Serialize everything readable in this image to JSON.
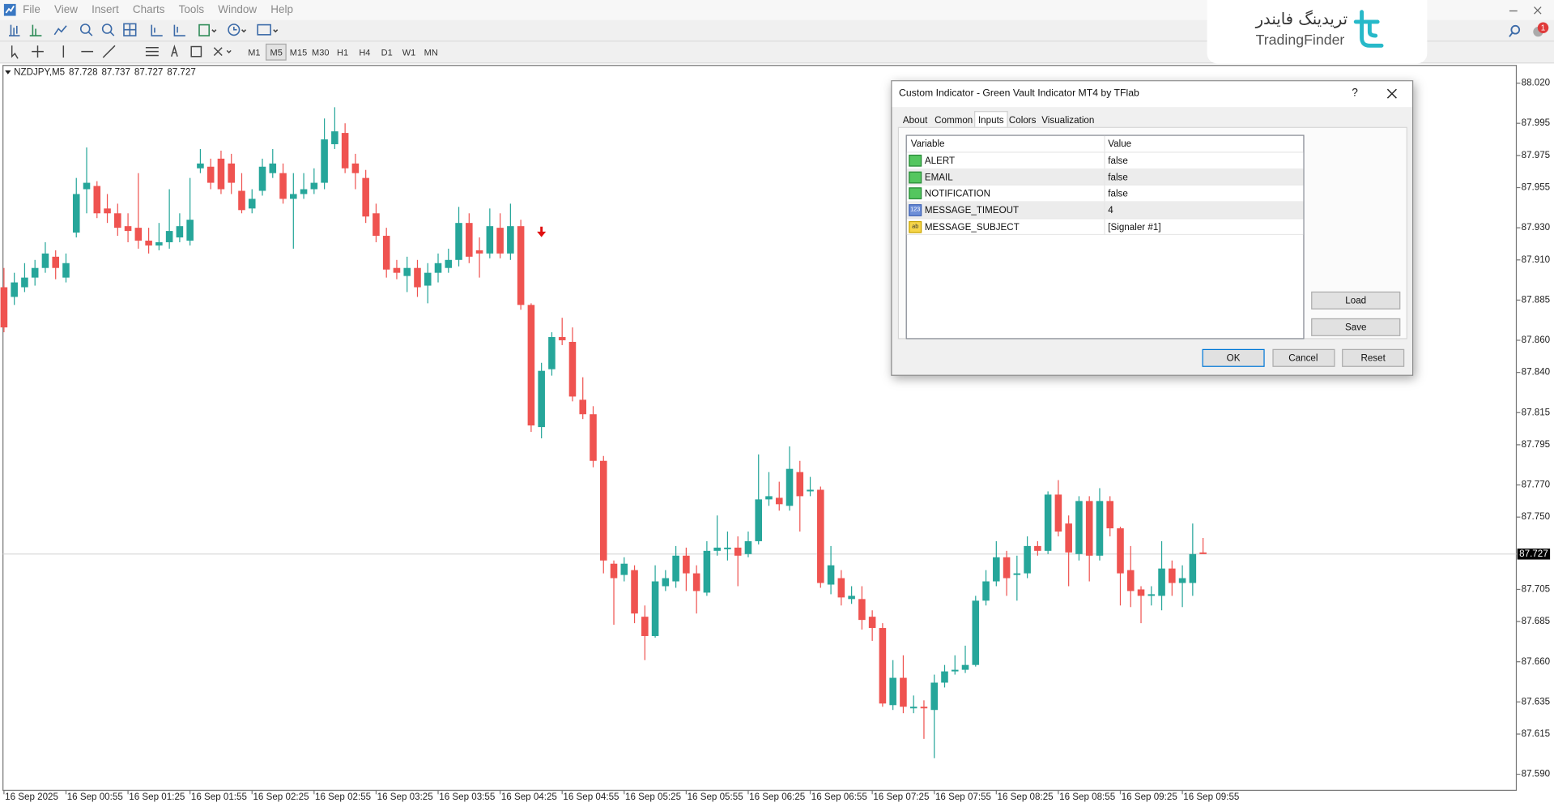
{
  "menu": [
    "File",
    "View",
    "Insert",
    "Charts",
    "Tools",
    "Window",
    "Help"
  ],
  "timeframes": [
    "M1",
    "M5",
    "M15",
    "M30",
    "H1",
    "H4",
    "D1",
    "W1",
    "MN"
  ],
  "active_timeframe": 1,
  "logo": {
    "fa": "تریدینگ فایندر",
    "en": "TradingFinder"
  },
  "notifications": 1,
  "chart_data": {
    "type": "candlestick",
    "symbol": "NZDJPY,M5",
    "ohlc_label": [
      87.728,
      87.737,
      87.727,
      87.727
    ],
    "colors": {
      "up": "#26a69a",
      "down": "#ef5350",
      "signal": "#e01010"
    },
    "x": [
      "16 Sep 2025",
      "16 Sep 00:55",
      "16 Sep 01:25",
      "16 Sep 01:55",
      "16 Sep 02:25",
      "16 Sep 02:55",
      "16 Sep 03:25",
      "16 Sep 03:55",
      "16 Sep 04:25",
      "16 Sep 04:55",
      "16 Sep 05:25",
      "16 Sep 05:55",
      "16 Sep 06:25",
      "16 Sep 06:55",
      "16 Sep 07:25",
      "16 Sep 07:55",
      "16 Sep 08:25",
      "16 Sep 08:55",
      "16 Sep 09:25",
      "16 Sep 09:55"
    ],
    "candles": [
      [
        87.893,
        87.905,
        87.865,
        87.868
      ],
      [
        87.887,
        87.902,
        87.882,
        87.896
      ],
      [
        87.893,
        87.908,
        87.89,
        87.899
      ],
      [
        87.899,
        87.91,
        87.894,
        87.905
      ],
      [
        87.905,
        87.921,
        87.902,
        87.914
      ],
      [
        87.912,
        87.916,
        87.898,
        87.905
      ],
      [
        87.899,
        87.914,
        87.896,
        87.908
      ],
      [
        87.927,
        87.961,
        87.924,
        87.951
      ],
      [
        87.954,
        87.98,
        87.939,
        87.958
      ],
      [
        87.956,
        87.959,
        87.936,
        87.939
      ],
      [
        87.942,
        87.951,
        87.933,
        87.939
      ],
      [
        87.939,
        87.945,
        87.925,
        87.93
      ],
      [
        87.931,
        87.939,
        87.921,
        87.928
      ],
      [
        87.93,
        87.964,
        87.917,
        87.922
      ],
      [
        87.922,
        87.93,
        87.914,
        87.919
      ],
      [
        87.919,
        87.933,
        87.916,
        87.921
      ],
      [
        87.921,
        87.954,
        87.917,
        87.928
      ],
      [
        87.924,
        87.939,
        87.921,
        87.931
      ],
      [
        87.922,
        87.961,
        87.919,
        87.935
      ],
      [
        87.967,
        87.979,
        87.964,
        87.97
      ],
      [
        87.968,
        87.973,
        87.954,
        87.958
      ],
      [
        87.973,
        87.978,
        87.951,
        87.954
      ],
      [
        87.97,
        87.976,
        87.951,
        87.958
      ],
      [
        87.953,
        87.964,
        87.939,
        87.941
      ],
      [
        87.942,
        87.954,
        87.939,
        87.948
      ],
      [
        87.953,
        87.973,
        87.95,
        87.968
      ],
      [
        87.964,
        87.979,
        87.961,
        87.97
      ],
      [
        87.964,
        87.97,
        87.945,
        87.948
      ],
      [
        87.948,
        87.964,
        87.917,
        87.951
      ],
      [
        87.951,
        87.964,
        87.948,
        87.954
      ],
      [
        87.954,
        87.967,
        87.951,
        87.958
      ],
      [
        87.958,
        87.998,
        87.954,
        87.985
      ],
      [
        87.982,
        88.005,
        87.979,
        87.99
      ],
      [
        87.989,
        87.995,
        87.964,
        87.967
      ],
      [
        87.97,
        87.976,
        87.954,
        87.964
      ],
      [
        87.961,
        87.966,
        87.933,
        87.937
      ],
      [
        87.939,
        87.945,
        87.921,
        87.925
      ],
      [
        87.925,
        87.93,
        87.899,
        87.904
      ],
      [
        87.905,
        87.91,
        87.898,
        87.902
      ],
      [
        87.9,
        87.912,
        87.89,
        87.905
      ],
      [
        87.905,
        87.91,
        87.887,
        87.893
      ],
      [
        87.894,
        87.908,
        87.883,
        87.902
      ],
      [
        87.902,
        87.914,
        87.896,
        87.908
      ],
      [
        87.905,
        87.917,
        87.902,
        87.91
      ],
      [
        87.91,
        87.943,
        87.906,
        87.933
      ],
      [
        87.933,
        87.939,
        87.908,
        87.912
      ],
      [
        87.916,
        87.924,
        87.899,
        87.914
      ],
      [
        87.914,
        87.942,
        87.911,
        87.931
      ],
      [
        87.93,
        87.939,
        87.911,
        87.914
      ],
      [
        87.914,
        87.945,
        87.91,
        87.931
      ],
      [
        87.931,
        87.935,
        87.879,
        87.882
      ],
      [
        87.882,
        87.883,
        87.803,
        87.807
      ],
      [
        87.806,
        87.846,
        87.799,
        87.841
      ],
      [
        87.842,
        87.865,
        87.838,
        87.862
      ],
      [
        87.862,
        87.874,
        87.857,
        87.86
      ],
      [
        87.859,
        87.868,
        87.822,
        87.825
      ],
      [
        87.823,
        87.837,
        87.811,
        87.814
      ],
      [
        87.814,
        87.819,
        87.781,
        87.785
      ],
      [
        87.785,
        87.788,
        87.715,
        87.723
      ],
      [
        87.721,
        87.723,
        87.683,
        87.712
      ],
      [
        87.714,
        87.725,
        87.71,
        87.721
      ],
      [
        87.717,
        87.72,
        87.684,
        87.69
      ],
      [
        87.688,
        87.695,
        87.661,
        87.676
      ],
      [
        87.676,
        87.72,
        87.675,
        87.71
      ],
      [
        87.707,
        87.717,
        87.704,
        87.712
      ],
      [
        87.71,
        87.732,
        87.706,
        87.726
      ],
      [
        87.726,
        87.731,
        87.704,
        87.715
      ],
      [
        87.715,
        87.72,
        87.69,
        87.704
      ],
      [
        87.703,
        87.735,
        87.701,
        87.729
      ],
      [
        87.729,
        87.751,
        87.726,
        87.731
      ],
      [
        87.73,
        87.741,
        87.723,
        87.731
      ],
      [
        87.731,
        87.738,
        87.707,
        87.726
      ],
      [
        87.727,
        87.741,
        87.725,
        87.735
      ],
      [
        87.735,
        87.789,
        87.733,
        87.761
      ],
      [
        87.761,
        87.778,
        87.757,
        87.763
      ],
      [
        87.762,
        87.772,
        87.754,
        87.758
      ],
      [
        87.757,
        87.794,
        87.754,
        87.78
      ],
      [
        87.778,
        87.785,
        87.741,
        87.763
      ],
      [
        87.766,
        87.775,
        87.763,
        87.767
      ],
      [
        87.767,
        87.769,
        87.706,
        87.709
      ],
      [
        87.708,
        87.732,
        87.702,
        87.72
      ],
      [
        87.712,
        87.717,
        87.695,
        87.7
      ],
      [
        87.699,
        87.707,
        87.696,
        87.701
      ],
      [
        87.699,
        87.707,
        87.68,
        87.686
      ],
      [
        87.688,
        87.692,
        87.673,
        87.681
      ],
      [
        87.681,
        87.684,
        87.632,
        87.634
      ],
      [
        87.633,
        87.661,
        87.63,
        87.65
      ],
      [
        87.65,
        87.664,
        87.628,
        87.632
      ],
      [
        87.631,
        87.639,
        87.628,
        87.632
      ],
      [
        87.632,
        87.636,
        87.612,
        87.631
      ],
      [
        87.63,
        87.652,
        87.6,
        87.647
      ],
      [
        87.647,
        87.658,
        87.644,
        87.654
      ],
      [
        87.654,
        87.664,
        87.652,
        87.655
      ],
      [
        87.655,
        87.67,
        87.653,
        87.658
      ],
      [
        87.658,
        87.701,
        87.657,
        87.698
      ],
      [
        87.698,
        87.717,
        87.695,
        87.71
      ],
      [
        87.71,
        87.735,
        87.707,
        87.725
      ],
      [
        87.725,
        87.729,
        87.701,
        87.712
      ],
      [
        87.714,
        87.726,
        87.698,
        87.715
      ],
      [
        87.715,
        87.738,
        87.712,
        87.732
      ],
      [
        87.732,
        87.735,
        87.726,
        87.729
      ],
      [
        87.729,
        87.766,
        87.727,
        87.764
      ],
      [
        87.764,
        87.773,
        87.738,
        87.741
      ],
      [
        87.746,
        87.751,
        87.707,
        87.728
      ],
      [
        87.727,
        87.763,
        87.723,
        87.76
      ],
      [
        87.76,
        87.763,
        87.71,
        87.726
      ],
      [
        87.726,
        87.768,
        87.723,
        87.76
      ],
      [
        87.76,
        87.763,
        87.738,
        87.743
      ],
      [
        87.743,
        87.744,
        87.695,
        87.715
      ],
      [
        87.717,
        87.732,
        87.694,
        87.704
      ],
      [
        87.705,
        87.707,
        87.684,
        87.701
      ],
      [
        87.701,
        87.707,
        87.695,
        87.702
      ],
      [
        87.701,
        87.735,
        87.692,
        87.718
      ],
      [
        87.718,
        87.723,
        87.701,
        87.709
      ],
      [
        87.709,
        87.72,
        87.694,
        87.712
      ],
      [
        87.709,
        87.746,
        87.701,
        87.727
      ],
      [
        87.728,
        87.737,
        87.727,
        87.727
      ]
    ],
    "signals": [
      {
        "candle": 52,
        "price": 87.927
      }
    ],
    "last_price": 87.727,
    "ylim": [
      87.58,
      88.031
    ],
    "yticks": [
      {
        "value": 88.02,
        "label": "88.020"
      },
      87.995,
      87.975,
      87.955,
      {
        "value": 87.93,
        "label": "87.930"
      },
      {
        "value": 87.91,
        "label": "87.910"
      },
      87.885,
      {
        "value": 87.86,
        "label": "87.860"
      },
      {
        "value": 87.84,
        "label": "87.840"
      },
      87.815,
      87.795,
      {
        "value": 87.77,
        "label": "87.770"
      },
      {
        "value": 87.75,
        "label": "87.750"
      },
      87.705,
      87.685,
      {
        "value": 87.66,
        "label": "87.660"
      },
      87.635,
      87.615,
      {
        "value": 87.59,
        "label": "87.590"
      }
    ],
    "grid": false
  },
  "dialog": {
    "title": "Custom Indicator - Green Vault Indicator MT4 by TFlab",
    "help": "?",
    "tabs": [
      "About",
      "Common",
      "Inputs",
      "Colors",
      "Visualization"
    ],
    "active_tab": 2,
    "columns": [
      "Variable",
      "Value"
    ],
    "rows": [
      {
        "variable": "ALERT",
        "value": "false"
      },
      {
        "variable": "EMAIL",
        "value": "false"
      },
      {
        "variable": "NOTIFICATION",
        "value": "false"
      },
      {
        "variable": "MESSAGE_TIMEOUT",
        "value": 4,
        "icon": "123"
      },
      {
        "variable": "MESSAGE_SUBJECT",
        "value": "[Signaler #1]",
        "icon": "ab"
      }
    ],
    "side_buttons": [
      "Load",
      "Save"
    ],
    "buttons": [
      "OK",
      "Cancel",
      "Reset"
    ]
  }
}
